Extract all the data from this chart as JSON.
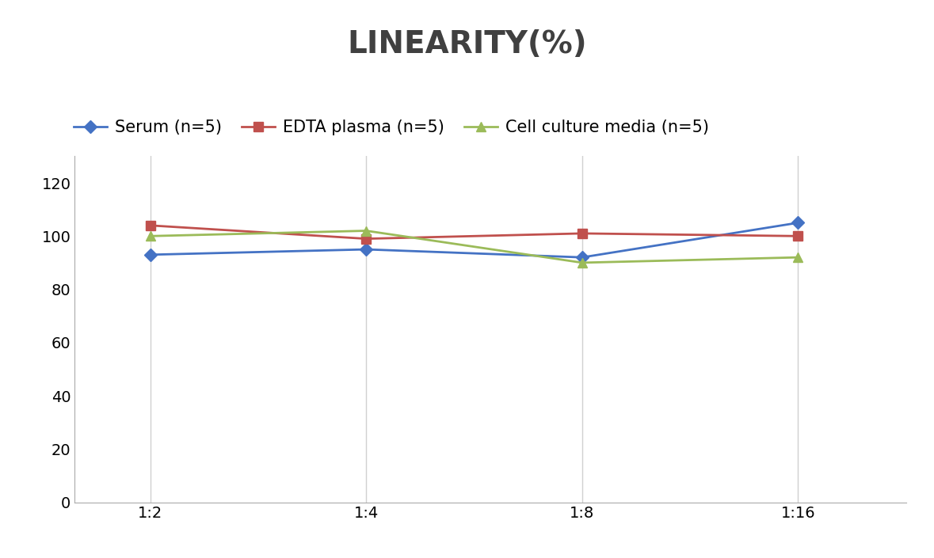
{
  "title": "LINEARITY(%)",
  "x_labels": [
    "1:2",
    "1:4",
    "1:8",
    "1:16"
  ],
  "x_positions": [
    0,
    1,
    2,
    3
  ],
  "series": [
    {
      "name": "Serum (n=5)",
      "values": [
        93,
        95,
        92,
        105
      ],
      "color": "#4472C4",
      "marker": "D",
      "linewidth": 2,
      "markersize": 8
    },
    {
      "name": "EDTA plasma (n=5)",
      "values": [
        104,
        99,
        101,
        100
      ],
      "color": "#C0504D",
      "marker": "s",
      "linewidth": 2,
      "markersize": 8
    },
    {
      "name": "Cell culture media (n=5)",
      "values": [
        100,
        102,
        90,
        92
      ],
      "color": "#9BBB59",
      "marker": "^",
      "linewidth": 2,
      "markersize": 8
    }
  ],
  "ylim": [
    0,
    130
  ],
  "yticks": [
    0,
    20,
    40,
    60,
    80,
    100,
    120
  ],
  "title_fontsize": 28,
  "legend_fontsize": 15,
  "tick_fontsize": 14,
  "background_color": "#ffffff",
  "grid_color": "#d0d0d0",
  "title_color": "#404040"
}
